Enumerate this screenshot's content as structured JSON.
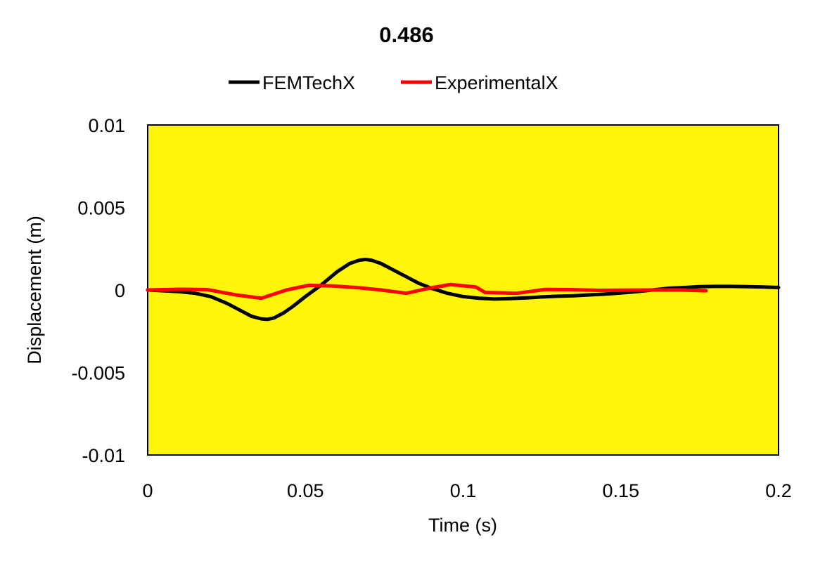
{
  "chart_data": {
    "type": "line",
    "title": "0.486",
    "xlabel": "Time (s)",
    "ylabel": "Displacement (m)",
    "xlim": [
      0,
      0.2
    ],
    "ylim": [
      -0.01,
      0.01
    ],
    "x_ticks": [
      0,
      0.05,
      0.1,
      0.15,
      0.2
    ],
    "x_tick_labels": [
      "0",
      "0.05",
      "0.1",
      "0.15",
      "0.2"
    ],
    "y_ticks": [
      0.01,
      0.005,
      0,
      -0.005,
      -0.01
    ],
    "y_tick_labels": [
      "0.01",
      "0.005",
      "0",
      "-0.005",
      "-0.01"
    ],
    "grid": false,
    "legend_position": "top-center",
    "plot_background": "#FFF60A",
    "series": [
      {
        "name": "FEMTechX",
        "color": "#000000",
        "x": [
          0,
          0.005,
          0.01,
          0.015,
          0.02,
          0.025,
          0.03,
          0.033,
          0.036,
          0.038,
          0.04,
          0.043,
          0.046,
          0.05,
          0.055,
          0.06,
          0.064,
          0.067,
          0.069,
          0.071,
          0.074,
          0.078,
          0.082,
          0.086,
          0.09,
          0.095,
          0.1,
          0.105,
          0.11,
          0.115,
          0.12,
          0.125,
          0.13,
          0.135,
          0.14,
          0.145,
          0.15,
          0.155,
          0.16,
          0.165,
          0.17,
          0.175,
          0.18,
          0.185,
          0.19,
          0.195,
          0.2
        ],
        "y": [
          0,
          -5e-05,
          -0.0001,
          -0.0002,
          -0.0004,
          -0.0008,
          -0.0013,
          -0.0016,
          -0.00175,
          -0.00178,
          -0.0017,
          -0.0014,
          -0.001,
          -0.0004,
          0.0003,
          0.0011,
          0.0016,
          0.0018,
          0.00185,
          0.0018,
          0.0016,
          0.0012,
          0.0008,
          0.0004,
          0.0001,
          -0.0002,
          -0.0004,
          -0.0005,
          -0.00055,
          -0.00052,
          -0.00048,
          -0.00042,
          -0.00038,
          -0.00035,
          -0.0003,
          -0.00025,
          -0.00018,
          -0.0001,
          0,
          0.0001,
          0.00015,
          0.0002,
          0.00022,
          0.00022,
          0.0002,
          0.00018,
          0.00015
        ]
      },
      {
        "name": "ExperimentalX",
        "color": "#FF0000",
        "x": [
          0,
          0.005,
          0.01,
          0.019,
          0.028,
          0.036,
          0.044,
          0.051,
          0.058,
          0.066,
          0.074,
          0.082,
          0.089,
          0.096,
          0.104,
          0.107,
          0.117,
          0.126,
          0.134,
          0.143,
          0.152,
          0.161,
          0.169,
          0.177
        ],
        "y": [
          0,
          2e-05,
          4e-05,
          2e-05,
          -0.0003,
          -0.0005,
          0,
          0.00028,
          0.00025,
          0.00015,
          0,
          -0.0002,
          0.0001,
          0.00033,
          0.00018,
          -0.00015,
          -0.0002,
          3e-05,
          2e-05,
          -2e-05,
          -1e-05,
          0,
          0,
          -5e-05
        ]
      }
    ]
  }
}
